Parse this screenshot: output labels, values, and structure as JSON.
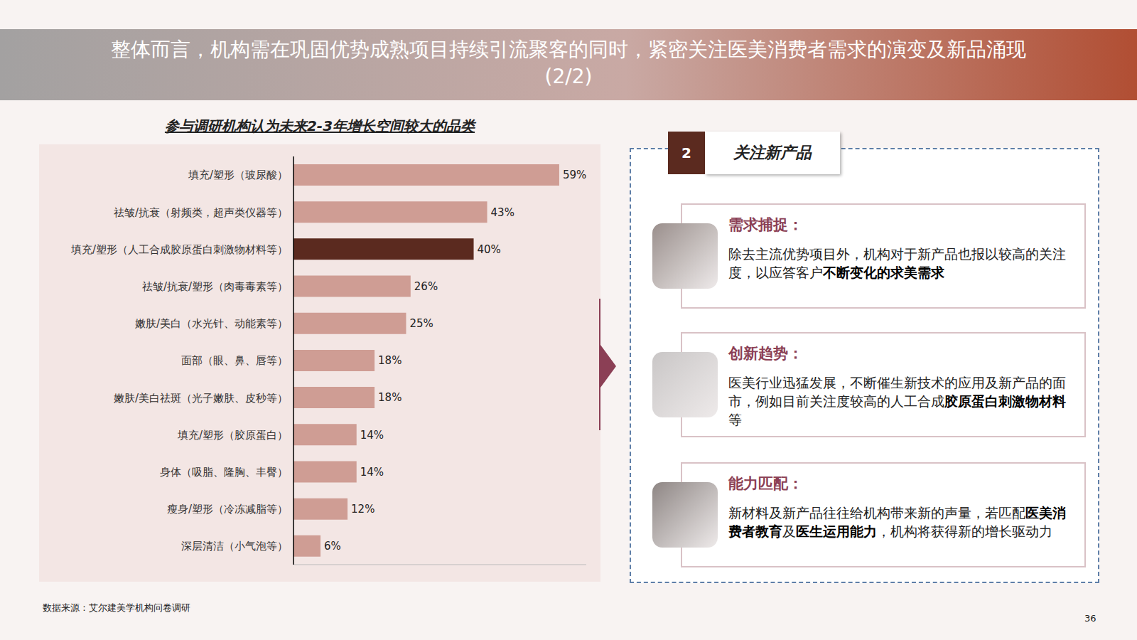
{
  "title": "整体而言，机构需在巩固优势成熟项目持续引流聚客的同时，紧密关注医美消费者需求的演变及新品涌现",
  "title_part": "(2/2)",
  "chart_data": {
    "type": "bar",
    "orientation": "horizontal",
    "title": "参与调研机构认为未来2-3年增长空间较大的品类",
    "categories": [
      "填充/塑形（玻尿酸）",
      "祛皱/抗衰（射频类，超声类仪器等）",
      "填充/塑形（人工合成胶原蛋白刺激物材料等）",
      "祛皱/抗衰/塑形（肉毒毒素等）",
      "嫩肤/美白（水光针、动能素等）",
      "面部（眼、鼻、唇等）",
      "嫩肤/美白祛斑（光子嫩肤、皮秒等）",
      "填充/塑形（胶原蛋白）",
      "身体（吸脂、隆胸、丰臀）",
      "瘦身/塑形（冷冻减脂等）",
      "深层清洁（小气泡等）"
    ],
    "values": [
      59,
      43,
      40,
      26,
      25,
      18,
      18,
      14,
      14,
      12,
      6
    ],
    "value_labels": [
      "59%",
      "43%",
      "40%",
      "26%",
      "25%",
      "18%",
      "18%",
      "14%",
      "14%",
      "12%",
      "6%"
    ],
    "colors": [
      "#cf9d94",
      "#cf9d94",
      "#5b2a1f",
      "#cf9d94",
      "#cf9d94",
      "#cf9d94",
      "#cf9d94",
      "#cf9d94",
      "#cf9d94",
      "#cf9d94",
      "#cf9d94"
    ],
    "xlim": [
      0,
      65
    ],
    "data_labels": true,
    "tick_labels": "y",
    "grid": false
  },
  "panel": {
    "number": "2",
    "title": "关注新产品",
    "cards": [
      {
        "heading": "需求捕捉：",
        "body": [
          {
            "text": "除去主流优势项目外，机构对于新产品也报以较高的关注度，以应答客户",
            "bold": false
          },
          {
            "text": "不断变化的求美需求",
            "bold": true
          }
        ]
      },
      {
        "heading": "创新趋势：",
        "body": [
          {
            "text": "医美行业迅猛发展，不断催生新技术的应用及新产品的面市，例如目前关注度较高的人工合成",
            "bold": false
          },
          {
            "text": "胶原蛋白刺激物材料",
            "bold": true
          },
          {
            "text": "等",
            "bold": false
          }
        ]
      },
      {
        "heading": "能力匹配：",
        "body": [
          {
            "text": "新材料及新产品往往给机构带来新的声量，若匹配",
            "bold": false
          },
          {
            "text": "医美消费者教育",
            "bold": true
          },
          {
            "text": "及",
            "bold": false
          },
          {
            "text": "医生运用能力",
            "bold": true
          },
          {
            "text": "，机构将获得新的增长驱动力",
            "bold": false
          }
        ]
      }
    ]
  },
  "source": "数据来源：艾尔建美学机构问卷调研",
  "page": 36
}
